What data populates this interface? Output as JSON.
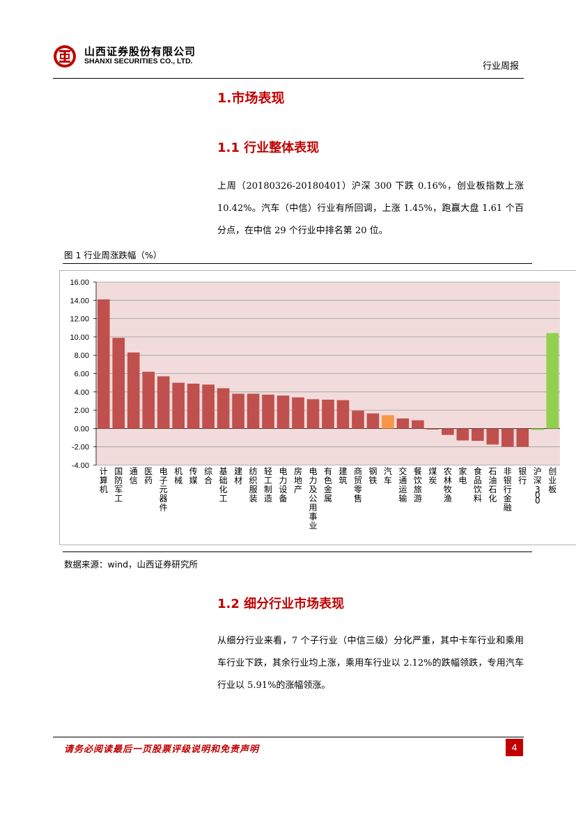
{
  "header": {
    "company_cn": "山西证券股份有限公司",
    "company_en": "SHANXI SECURITIES CO., LTD.",
    "report_type": "行业周报"
  },
  "section1": {
    "title": "1.市场表现",
    "sub1_title": "1.1 行业整体表现",
    "sub1_paragraph": "上周（20180326-20180401）沪深 300 下跌 0.16%，创业板指数上涨10.42%。汽车（中信）行业有所回调，上涨 1.45%，跑赢大盘 1.61 个百分点，在中信 29 个行业中排名第 20 位。",
    "figure_caption": "图 1 行业周涨跌幅（%）",
    "figure_source": "数据来源：wind，山西证券研究所",
    "sub2_title": "1.2 细分行业市场表现",
    "sub2_paragraph": "从细分行业来看，7 个子行业（中信三级）分化严重，其中卡车行业和乘用车行业下跌，其余行业均上涨，乘用车行业以 2.12%的跌幅领跌，专用汽车行业以 5.91%的涨幅领涨。"
  },
  "footer": {
    "disclaimer": "请务必阅读最后一页股票评级说明和免责声明",
    "page_number": "4"
  },
  "chart_data": {
    "type": "bar",
    "title": "",
    "xlabel": "",
    "ylabel": "",
    "ylim": [
      -4,
      16
    ],
    "yticks": [
      "16.00",
      "14.00",
      "12.00",
      "10.00",
      "8.00",
      "6.00",
      "4.00",
      "2.00",
      "0.00",
      "-2.00",
      "-4.00"
    ],
    "grid": true,
    "colors": {
      "default": "#c0504d",
      "highlight": "#f79646",
      "index": "#92d050",
      "plot_bg": "#f2dcdb"
    },
    "categories": [
      "计算机",
      "国防军工",
      "通信",
      "医药",
      "电子元器件",
      "机械",
      "传媒",
      "综合",
      "基础化工",
      "建材",
      "纺织服装",
      "轻工制造",
      "电力设备",
      "房地产",
      "电力及公用事业",
      "有色金属",
      "建筑",
      "商贸零售",
      "钢铁",
      "汽车",
      "交通运输",
      "餐饮旅游",
      "煤炭",
      "农林牧渔",
      "家电",
      "食品饮料",
      "石油石化",
      "非银行金融",
      "银行",
      "沪深300",
      "创业板"
    ],
    "values": [
      14.1,
      9.9,
      8.3,
      6.2,
      5.7,
      5.0,
      4.9,
      4.8,
      4.4,
      3.8,
      3.8,
      3.7,
      3.6,
      3.4,
      3.2,
      3.15,
      3.1,
      1.95,
      1.65,
      1.45,
      1.1,
      0.9,
      -0.1,
      -0.7,
      -1.3,
      -1.35,
      -1.75,
      -2.0,
      -2.0,
      -0.16,
      10.42
    ],
    "highlight": [
      "default",
      "default",
      "default",
      "default",
      "default",
      "default",
      "default",
      "default",
      "default",
      "default",
      "default",
      "default",
      "default",
      "default",
      "default",
      "default",
      "default",
      "default",
      "default",
      "highlight",
      "default",
      "default",
      "default",
      "default",
      "default",
      "default",
      "default",
      "default",
      "default",
      "index",
      "index"
    ]
  }
}
